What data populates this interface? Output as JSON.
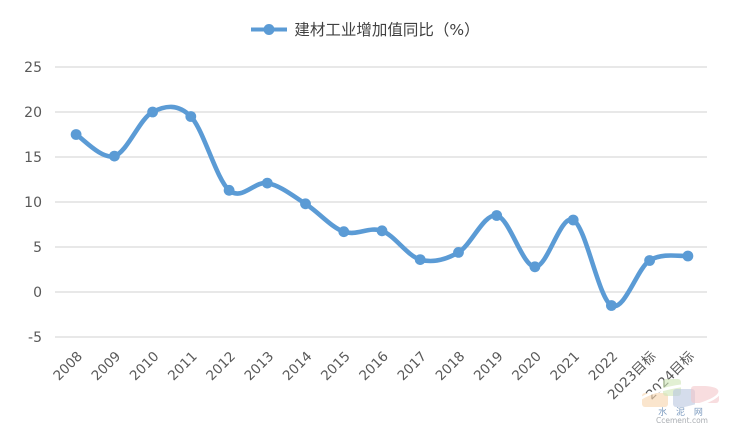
{
  "legend": {
    "label": "建材工业增加值同比（%）"
  },
  "chart_data": {
    "type": "line",
    "smooth": true,
    "series": [
      {
        "name": "建材工业增加值同比（%）",
        "values": [
          17.5,
          15.1,
          20.0,
          19.5,
          11.3,
          12.1,
          9.8,
          6.7,
          6.8,
          3.6,
          4.4,
          8.5,
          2.8,
          8.0,
          -1.5,
          3.5,
          4.0
        ]
      }
    ],
    "categories": [
      "2008",
      "2009",
      "2010",
      "2011",
      "2012",
      "2013",
      "2014",
      "2015",
      "2016",
      "2017",
      "2018",
      "2019",
      "2020",
      "2021",
      "2022",
      "2023目标",
      "2024目标"
    ],
    "title": "",
    "xlabel": "",
    "ylabel": "",
    "ylim": [
      -5,
      25
    ],
    "yticks": [
      25,
      20,
      15,
      10,
      5,
      0,
      -5
    ],
    "grid": true,
    "legend_position": "top",
    "line_color": "#5B9BD5",
    "gridline_color": "#D9D9D9",
    "axis_label_color": "#595959"
  },
  "watermark": {
    "line1": "水 泥 网",
    "line2": "Ccement.com",
    "square_colors": {
      "orange": "#f6d3ac",
      "green": "#cfe6b5",
      "blue": "#b9c6e0",
      "pink": "#f4c6ca"
    }
  }
}
